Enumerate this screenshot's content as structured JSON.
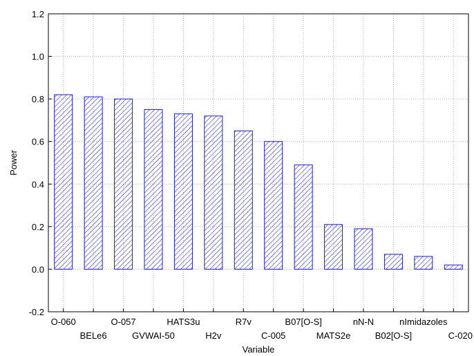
{
  "chart_data": {
    "type": "bar",
    "categories": [
      "O-060",
      "BELe6",
      "O-057",
      "GVWAI-50",
      "HATS3u",
      "H2v",
      "R7v",
      "C-005",
      "B07[O-S]",
      "MATS2e",
      "nN-N",
      "B02[O-S]",
      "nImidazoles",
      "C-020"
    ],
    "values": [
      0.82,
      0.81,
      0.8,
      0.75,
      0.73,
      0.72,
      0.65,
      0.6,
      0.49,
      0.21,
      0.19,
      0.07,
      0.06,
      0.02
    ],
    "title": "",
    "xlabel": "Variable",
    "ylabel": "Power",
    "ylim": [
      -0.2,
      1.2
    ],
    "yticks": [
      "-0.2",
      "0.0",
      "0.2",
      "0.4",
      "0.6",
      "0.8",
      "1.0",
      "1.2"
    ],
    "grid": true,
    "legend": "none",
    "bar_color": "#1a1ad9",
    "grid_color": "#b0b0b0"
  }
}
